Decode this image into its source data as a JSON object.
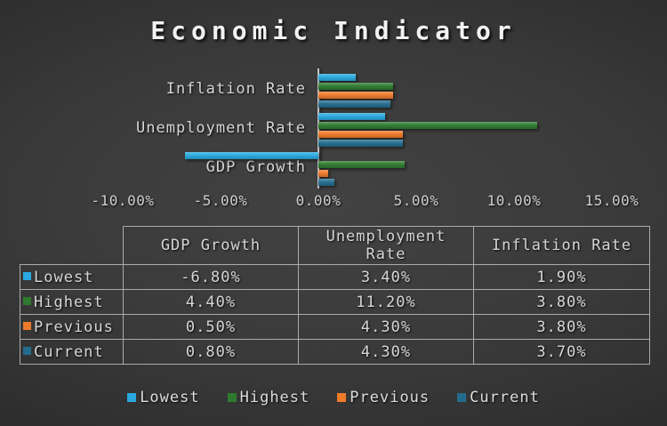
{
  "chart_data": {
    "type": "bar",
    "orientation": "horizontal",
    "title": "Economic Indicator",
    "categories": [
      "GDP Growth",
      "Unemployment Rate",
      "Inflation Rate"
    ],
    "category_display_order_top_to_bottom": [
      "Inflation Rate",
      "Unemployment Rate",
      "GDP Growth"
    ],
    "series": [
      {
        "name": "Lowest",
        "color": "#29A9DF",
        "values": [
          -6.8,
          3.4,
          1.9
        ]
      },
      {
        "name": "Highest",
        "color": "#2E7B2F",
        "values": [
          4.4,
          11.2,
          3.8
        ]
      },
      {
        "name": "Previous",
        "color": "#EE7A2A",
        "values": [
          0.5,
          4.3,
          3.8
        ]
      },
      {
        "name": "Current",
        "color": "#246C8E",
        "values": [
          0.8,
          4.3,
          3.7
        ]
      }
    ],
    "x_axis": {
      "min": -10,
      "max": 15,
      "tick_step": 5,
      "tick_labels": [
        "-10.00%",
        "-5.00%",
        "0.00%",
        "5.00%",
        "10.00%",
        "15.00%"
      ],
      "format": "percent"
    },
    "grid": false,
    "legend_position": "bottom"
  },
  "table": {
    "header": [
      "",
      "GDP Growth",
      "Unemployment Rate",
      "Inflation Rate"
    ],
    "rows": [
      {
        "label": "Lowest",
        "marker_color": "#29A9DF",
        "cells": [
          "-6.80%",
          "3.40%",
          "1.90%"
        ]
      },
      {
        "label": "Highest",
        "marker_color": "#2E7B2F",
        "cells": [
          "4.40%",
          "11.20%",
          "3.80%"
        ]
      },
      {
        "label": "Previous",
        "marker_color": "#EE7A2A",
        "cells": [
          "0.50%",
          "4.30%",
          "3.80%"
        ]
      },
      {
        "label": "Current",
        "marker_color": "#246C8E",
        "cells": [
          "0.80%",
          "4.30%",
          "3.70%"
        ]
      }
    ]
  },
  "legend": [
    {
      "label": "Lowest",
      "color": "#29A9DF"
    },
    {
      "label": "Highest",
      "color": "#2E7B2F"
    },
    {
      "label": "Previous",
      "color": "#EE7A2A"
    },
    {
      "label": "Current",
      "color": "#246C8E"
    }
  ],
  "colors": {
    "background_center": "#424242",
    "background_edge": "#1E1E1E",
    "axis_line": "#C4C4C4",
    "text": "#D6D6D6",
    "table_border": "#ABABAB"
  }
}
